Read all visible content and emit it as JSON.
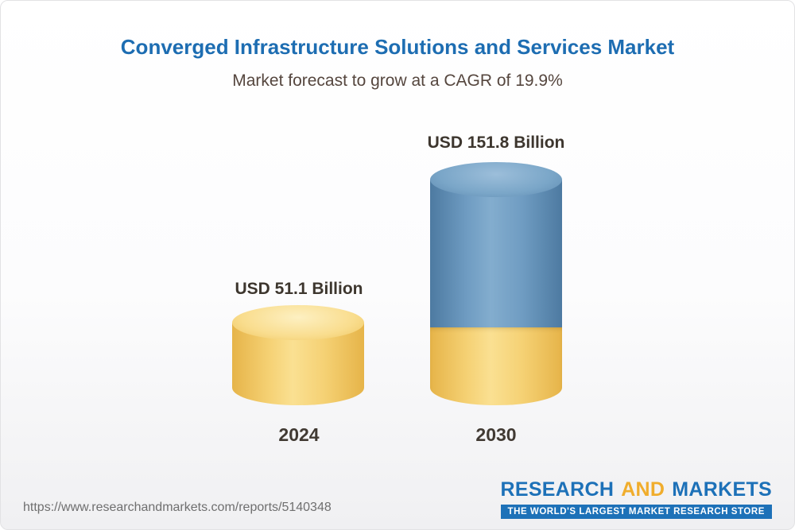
{
  "page": {
    "title": "Converged Infrastructure Solutions and Services Market",
    "subtitle": "Market forecast to grow at a CAGR of 19.9%"
  },
  "chart_data": {
    "type": "bar",
    "title": "Converged Infrastructure Solutions and Services Market",
    "subtitle": "Market forecast to grow at a CAGR of 19.9%",
    "cagr_percent": 19.9,
    "unit": "USD Billion",
    "categories": [
      "2024",
      "2030"
    ],
    "values": [
      51.1,
      151.8
    ],
    "value_labels": [
      "USD 51.1 Billion",
      "USD 151.8 Billion"
    ],
    "grid": false,
    "legend_position": "none",
    "colors": {
      "bar_2024": "#f7cf6e",
      "bar_2030": "#6591b8",
      "bar_2030_base_segment": "#f7cf6e",
      "title_blue": "#1d6db2"
    }
  },
  "footer": {
    "url": "https://www.researchandmarkets.com/reports/5140348",
    "logo": {
      "research": "RESEARCH",
      "and": "AND",
      "markets": "MARKETS",
      "tagline": "THE WORLD'S LARGEST MARKET RESEARCH STORE"
    }
  }
}
